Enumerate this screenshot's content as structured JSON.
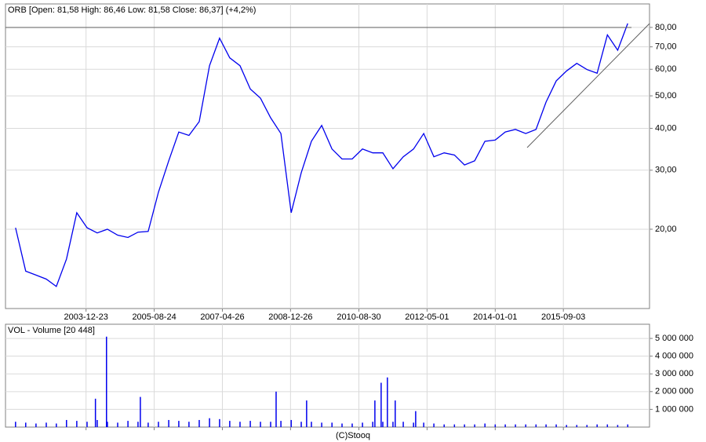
{
  "chart_data": [
    {
      "type": "line",
      "log": true,
      "grid": true,
      "title": "ORB [Open: 81,58  High: 86,46  Low: 81,58  Close: 86,37] (+4,2%)",
      "xlim": [
        "2002-01-01",
        "2017-10-13"
      ],
      "xticks": [
        "2003-12-23",
        "2005-08-24",
        "2007-04-26",
        "2008-12-26",
        "2010-08-30",
        "2012-05-01",
        "2014-01-01",
        "2015-09-03"
      ],
      "ylim": [
        11.6,
        94
      ],
      "yticks": [
        {
          "value": 20,
          "label": "20,00"
        },
        {
          "value": 30,
          "label": "30,00"
        },
        {
          "value": 40,
          "label": "40,00"
        },
        {
          "value": 50,
          "label": "50,00"
        },
        {
          "value": 60,
          "label": "60,00"
        },
        {
          "value": 70,
          "label": "70,00"
        },
        {
          "value": 80,
          "label": "80,00"
        }
      ],
      "x": [
        "2002-04-01",
        "2002-07-01",
        "2002-10-01",
        "2003-01-01",
        "2003-04-01",
        "2003-07-01",
        "2003-10-01",
        "2004-01-01",
        "2004-04-01",
        "2004-07-01",
        "2004-10-01",
        "2005-01-01",
        "2005-04-01",
        "2005-07-01",
        "2005-10-01",
        "2006-01-01",
        "2006-04-01",
        "2006-07-01",
        "2006-10-01",
        "2007-01-01",
        "2007-04-01",
        "2007-07-01",
        "2007-10-01",
        "2008-01-01",
        "2008-04-01",
        "2008-07-01",
        "2008-10-01",
        "2009-01-01",
        "2009-04-01",
        "2009-07-01",
        "2009-10-01",
        "2010-01-01",
        "2010-04-01",
        "2010-07-01",
        "2010-10-01",
        "2011-01-01",
        "2011-04-01",
        "2011-07-01",
        "2011-10-01",
        "2012-01-01",
        "2012-04-01",
        "2012-07-01",
        "2012-10-01",
        "2013-01-01",
        "2013-04-01",
        "2013-07-01",
        "2013-10-01",
        "2014-01-01",
        "2014-04-01",
        "2014-07-01",
        "2014-10-01",
        "2015-01-01",
        "2015-04-01",
        "2015-07-01",
        "2015-10-01",
        "2016-01-01",
        "2016-04-01",
        "2016-07-01",
        "2016-10-01",
        "2017-01-01",
        "2017-04-01"
      ],
      "series": [
        {
          "name": "ORB",
          "color": "#0000ee",
          "values": [
            20.2,
            15.0,
            14.6,
            14.2,
            13.5,
            16.3,
            22.4,
            20.2,
            19.5,
            20.0,
            19.2,
            18.9,
            19.6,
            19.7,
            25.8,
            32.0,
            39.0,
            38.1,
            41.9,
            61.5,
            74.3,
            64.9,
            61.5,
            52.4,
            49.2,
            43.0,
            38.6,
            22.4,
            29.5,
            36.6,
            40.8,
            34.7,
            32.4,
            32.4,
            34.7,
            33.8,
            33.8,
            30.3,
            32.9,
            34.7,
            38.6,
            32.9,
            33.8,
            33.3,
            31.1,
            32.0,
            36.6,
            36.9,
            39.0,
            39.7,
            38.6,
            39.7,
            47.9,
            55.4,
            59.3,
            62.5,
            59.9,
            58.4,
            76.0,
            68.4,
            82.2
          ]
        }
      ]
    },
    {
      "type": "bar",
      "grid": true,
      "title": "VOL - Volume [20 448]",
      "xlim": [
        "2002-01-01",
        "2017-10-13"
      ],
      "xticks": [
        "2003-12-23",
        "2005-08-24",
        "2007-04-26",
        "2008-12-26",
        "2010-08-30",
        "2012-05-01",
        "2014-01-01",
        "2015-09-03"
      ],
      "ylim": [
        0,
        5800000
      ],
      "yticks": [
        {
          "value": 1000000,
          "label": "1 000 000"
        },
        {
          "value": 2000000,
          "label": "2 000 000"
        },
        {
          "value": 3000000,
          "label": "3 000 000"
        },
        {
          "value": 4000000,
          "label": "4 000 000"
        },
        {
          "value": 5000000,
          "label": "5 000 000"
        }
      ],
      "x": [
        "2002-04-01",
        "2002-07-01",
        "2002-10-01",
        "2003-01-01",
        "2003-04-01",
        "2003-07-01",
        "2003-10-01",
        "2004-01-01",
        "2004-03-16",
        "2004-04-01",
        "2004-06-23",
        "2004-07-01",
        "2004-10-01",
        "2005-01-01",
        "2005-04-01",
        "2005-04-22",
        "2005-07-01",
        "2005-10-01",
        "2006-01-01",
        "2006-04-01",
        "2006-07-01",
        "2006-10-01",
        "2007-01-01",
        "2007-04-01",
        "2007-07-01",
        "2007-10-01",
        "2008-01-01",
        "2008-04-01",
        "2008-07-01",
        "2008-08-19",
        "2008-10-01",
        "2009-01-01",
        "2009-04-01",
        "2009-05-19",
        "2009-07-01",
        "2009-10-01",
        "2010-01-01",
        "2010-04-01",
        "2010-07-01",
        "2010-10-01",
        "2011-01-01",
        "2011-01-20",
        "2011-03-17",
        "2011-04-01",
        "2011-05-12",
        "2011-07-01",
        "2011-07-21",
        "2011-10-01",
        "2012-01-01",
        "2012-01-20",
        "2012-04-01",
        "2012-07-01",
        "2012-10-01",
        "2013-01-01",
        "2013-04-01",
        "2013-07-01",
        "2013-10-01",
        "2014-01-01",
        "2014-04-01",
        "2014-07-01",
        "2014-10-01",
        "2015-01-01",
        "2015-04-01",
        "2015-07-01",
        "2015-10-01",
        "2016-01-01",
        "2016-04-01",
        "2016-07-01",
        "2016-10-01",
        "2017-01-01",
        "2017-04-01"
      ],
      "series": [
        {
          "name": "VOL",
          "color": "#0000ee",
          "values": [
            300000,
            250000,
            200000,
            250000,
            200000,
            400000,
            350000,
            300000,
            1600000,
            400000,
            5100000,
            300000,
            250000,
            350000,
            300000,
            1700000,
            250000,
            300000,
            400000,
            350000,
            300000,
            400000,
            500000,
            450000,
            350000,
            300000,
            350000,
            300000,
            300000,
            2000000,
            350000,
            400000,
            300000,
            1500000,
            300000,
            250000,
            250000,
            200000,
            200000,
            250000,
            300000,
            1500000,
            2500000,
            300000,
            2800000,
            300000,
            1500000,
            300000,
            250000,
            900000,
            250000,
            200000,
            150000,
            150000,
            150000,
            150000,
            200000,
            150000,
            150000,
            150000,
            150000,
            150000,
            150000,
            150000,
            120000,
            120000,
            120000,
            150000,
            150000,
            120000,
            150000
          ]
        }
      ]
    }
  ],
  "footer": "(C)Stooq"
}
